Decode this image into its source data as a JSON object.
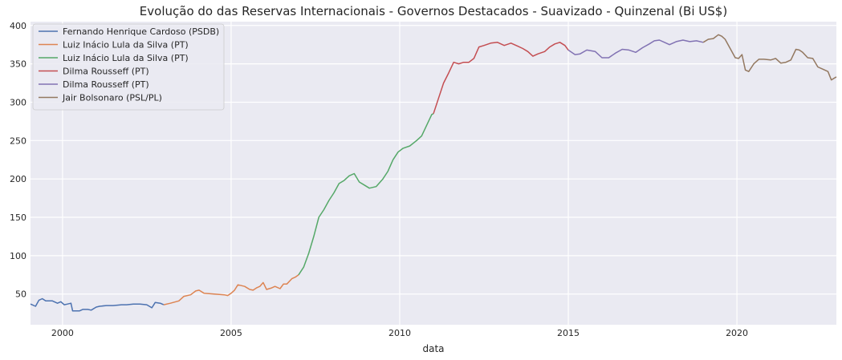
{
  "chart_data": {
    "type": "line",
    "title": "Evolução do das Reservas Internacionais - Governos Destacados - Suavizado - Quinzenal (Bi US$)",
    "xlabel": "data",
    "ylabel": "",
    "xlim": [
      1999.05,
      2022.95
    ],
    "ylim": [
      10,
      405
    ],
    "xticks": [
      2000,
      2005,
      2010,
      2015,
      2020
    ],
    "yticks": [
      50,
      100,
      150,
      200,
      250,
      300,
      350,
      400
    ],
    "grid": true,
    "legend_position": "top-left",
    "series": [
      {
        "name": "Fernando Henrique Cardoso (PSDB)",
        "color": "#4c72b0",
        "x": [
          1999.05,
          1999.2,
          1999.3,
          1999.4,
          1999.5,
          1999.6,
          1999.7,
          1999.85,
          1999.95,
          2000.05,
          2000.15,
          2000.25,
          2000.3,
          2000.5,
          2000.6,
          2000.75,
          2000.85,
          2001.0,
          2001.1,
          2001.3,
          2001.5,
          2001.75,
          2001.9,
          2002.1,
          2002.3,
          2002.5,
          2002.65,
          2002.75,
          2002.9,
          2003.0
        ],
        "y": [
          37,
          34,
          42,
          44,
          41,
          41,
          41,
          38,
          40,
          36,
          37,
          38,
          28,
          28,
          30,
          30,
          29,
          33,
          34,
          35,
          35,
          36,
          36,
          37,
          37,
          36,
          32,
          39,
          38,
          36
        ]
      },
      {
        "name": "Luiz Inácio Lula da Silva (PT)",
        "color": "#dd8452",
        "x": [
          2003.0,
          2003.2,
          2003.45,
          2003.6,
          2003.8,
          2003.95,
          2004.05,
          2004.2,
          2004.5,
          2004.8,
          2004.9,
          2005.0,
          2005.1,
          2005.2,
          2005.3,
          2005.4,
          2005.55,
          2005.65,
          2005.75,
          2005.85,
          2005.95,
          2006.05,
          2006.2,
          2006.3,
          2006.45,
          2006.55,
          2006.65,
          2006.8,
          2006.9,
          2007.0
        ],
        "y": [
          36,
          38,
          41,
          47,
          49,
          54,
          55,
          51,
          50,
          49,
          48,
          51,
          55,
          62,
          61,
          60,
          56,
          55,
          58,
          60,
          65,
          56,
          58,
          60,
          57,
          63,
          63,
          70,
          72,
          75
        ]
      },
      {
        "name": "Luiz Inácio Lula da Silva (PT)",
        "color": "#55a868",
        "x": [
          2007.0,
          2007.15,
          2007.3,
          2007.45,
          2007.6,
          2007.75,
          2007.9,
          2008.05,
          2008.2,
          2008.35,
          2008.5,
          2008.65,
          2008.8,
          2008.95,
          2009.1,
          2009.3,
          2009.5,
          2009.65,
          2009.8,
          2009.95,
          2010.1,
          2010.3,
          2010.5,
          2010.65,
          2010.8,
          2010.95,
          2011.0
        ],
        "y": [
          75,
          85,
          103,
          125,
          150,
          160,
          172,
          182,
          194,
          198,
          204,
          207,
          196,
          192,
          188,
          190,
          200,
          210,
          225,
          235,
          240,
          243,
          250,
          256,
          270,
          284,
          285
        ]
      },
      {
        "name": "Dilma Rousseff (PT)",
        "color": "#c44e52",
        "x": [
          2011.0,
          2011.15,
          2011.3,
          2011.45,
          2011.6,
          2011.75,
          2011.9,
          2012.05,
          2012.2,
          2012.35,
          2012.5,
          2012.7,
          2012.9,
          2013.1,
          2013.3,
          2013.5,
          2013.65,
          2013.8,
          2013.95,
          2014.1,
          2014.3,
          2014.45,
          2014.6,
          2014.75,
          2014.9,
          2015.0
        ],
        "y": [
          285,
          305,
          325,
          338,
          352,
          350,
          352,
          352,
          357,
          372,
          374,
          377,
          378,
          374,
          377,
          373,
          370,
          366,
          360,
          363,
          366,
          372,
          376,
          378,
          374,
          368
        ]
      },
      {
        "name": "Dilma Rousseff (PT)",
        "color": "#8172b3",
        "x": [
          2015.0,
          2015.2,
          2015.35,
          2015.55,
          2015.8,
          2016.0,
          2016.2,
          2016.4,
          2016.6,
          2016.8,
          2017.0,
          2017.2,
          2017.4,
          2017.55,
          2017.7,
          2017.85,
          2018.0,
          2018.2,
          2018.4,
          2018.6,
          2018.8,
          2019.0
        ],
        "y": [
          368,
          362,
          363,
          368,
          366,
          358,
          358,
          364,
          369,
          368,
          365,
          371,
          376,
          380,
          381,
          378,
          375,
          379,
          381,
          379,
          380,
          378
        ]
      },
      {
        "name": "Jair Bolsonaro (PSL/PL)",
        "color": "#937860",
        "x": [
          2019.0,
          2019.15,
          2019.3,
          2019.45,
          2019.55,
          2019.65,
          2019.8,
          2019.95,
          2020.05,
          2020.15,
          2020.25,
          2020.35,
          2020.5,
          2020.65,
          2020.8,
          2021.0,
          2021.15,
          2021.3,
          2021.45,
          2021.6,
          2021.75,
          2021.85,
          2021.95,
          2022.1,
          2022.25,
          2022.4,
          2022.55,
          2022.7,
          2022.8,
          2022.95
        ],
        "y": [
          378,
          382,
          383,
          388,
          386,
          382,
          370,
          358,
          357,
          362,
          342,
          340,
          350,
          356,
          356,
          355,
          357,
          351,
          352,
          355,
          369,
          368,
          365,
          358,
          357,
          346,
          343,
          340,
          329,
          333
        ]
      }
    ]
  }
}
